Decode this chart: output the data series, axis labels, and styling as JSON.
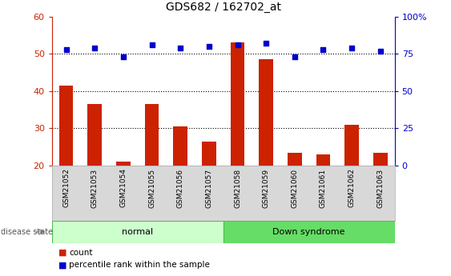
{
  "title": "GDS682 / 162702_at",
  "samples": [
    "GSM21052",
    "GSM21053",
    "GSM21054",
    "GSM21055",
    "GSM21056",
    "GSM21057",
    "GSM21058",
    "GSM21059",
    "GSM21060",
    "GSM21061",
    "GSM21062",
    "GSM21063"
  ],
  "bar_values": [
    41.5,
    36.5,
    21.0,
    36.5,
    30.5,
    26.5,
    53.0,
    48.5,
    23.5,
    23.0,
    31.0,
    23.5
  ],
  "dot_values": [
    78,
    79,
    73,
    81,
    79,
    80,
    81,
    82,
    73,
    78,
    79,
    77
  ],
  "bar_color": "#cc2200",
  "dot_color": "#0000cc",
  "bar_bottom": 20,
  "ylim_left": [
    20,
    60
  ],
  "ylim_right": [
    0,
    100
  ],
  "yticks_left": [
    20,
    30,
    40,
    50,
    60
  ],
  "yticks_right": [
    0,
    25,
    50,
    75,
    100
  ],
  "ytick_labels_right": [
    "0",
    "25",
    "50",
    "75",
    "100%"
  ],
  "normal_color": "#ccffcc",
  "down_color": "#66dd66",
  "normal_label": "normal",
  "down_label": "Down syndrome",
  "disease_state_label": "disease state",
  "legend_count": "count",
  "legend_pct": "percentile rank within the sample",
  "tick_label_color_left": "#cc2200",
  "tick_label_color_right": "#0000cc",
  "label_bg_color": "#d8d8d8"
}
